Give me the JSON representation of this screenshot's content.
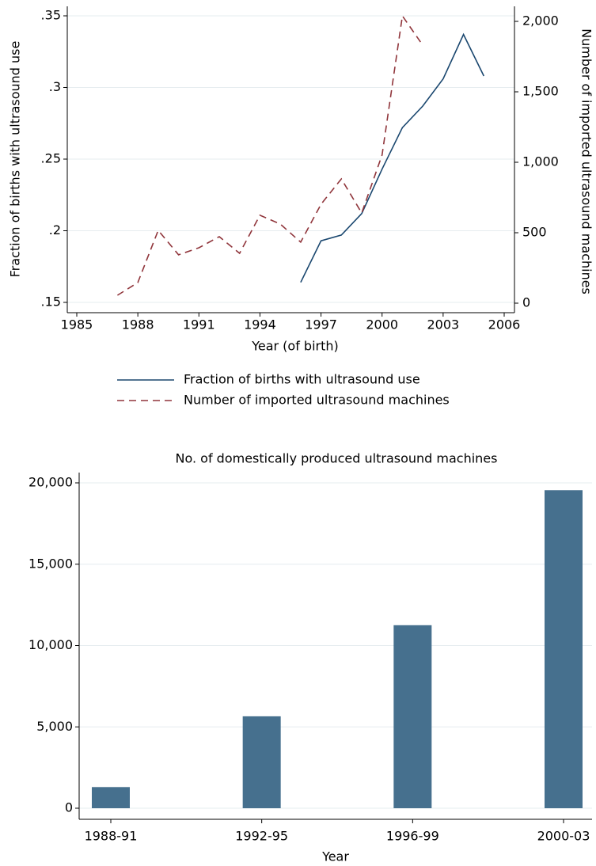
{
  "chart_data": [
    {
      "type": "line",
      "x_label": "Year (of birth)",
      "y_label": "Fraction of births with ultrasound use",
      "y2_label": "Number of imported ultrasound machines",
      "x": [
        1987,
        1988,
        1989,
        1990,
        1991,
        1992,
        1993,
        1994,
        1995,
        1996,
        1997,
        1998,
        1999,
        2000,
        2001,
        2002,
        2003,
        2004,
        2005
      ],
      "series": [
        {
          "name": "Fraction of births with ultrasound use",
          "color": "#1a476f",
          "style": "solid",
          "values": [
            null,
            null,
            null,
            null,
            null,
            null,
            null,
            null,
            null,
            0.164,
            0.193,
            0.197,
            0.212,
            0.243,
            0.272,
            0.287,
            0.306,
            0.337,
            0.308
          ]
        },
        {
          "name": "Number of imported ultrasound machines",
          "color": "#90353b",
          "style": "dashed",
          "axis": "y2",
          "values": [
            56,
            146,
            517,
            343,
            393,
            472,
            354,
            624,
            562,
            433,
            702,
            882,
            640,
            1051,
            2039,
            1831,
            null,
            null,
            null
          ]
        }
      ],
      "xlim": [
        1985,
        2006
      ],
      "xticks": [
        1985,
        1988,
        1991,
        1994,
        1997,
        2000,
        2003,
        2006
      ],
      "ylim": [
        0.15,
        0.35
      ],
      "yticks": [
        {
          "value": 0.15,
          "label": ".15"
        },
        {
          "value": 0.2,
          "label": ".2"
        },
        {
          "value": 0.25,
          "label": ".25"
        },
        {
          "value": 0.3,
          "label": ".3"
        },
        {
          "value": 0.35,
          "label": ".35"
        }
      ],
      "y2lim": [
        0,
        2000
      ],
      "y2ticks": [
        0,
        500,
        {
          "value": 1000,
          "label": "1,000"
        },
        {
          "value": 1500,
          "label": "1,500"
        },
        {
          "value": 2000,
          "label": "2,000"
        }
      ],
      "grid": true,
      "legend": "bottom"
    },
    {
      "type": "bar",
      "title": "No. of domestically produced ultrasound machines",
      "x_label": "Year",
      "categories": [
        "1988-91",
        "1992-95",
        "1996-99",
        "2000-03"
      ],
      "values": [
        1300,
        5650,
        11250,
        19550
      ],
      "color": "#46708e",
      "ylim": [
        0,
        20000
      ],
      "yticks": [
        0,
        {
          "value": 5000,
          "label": "5,000"
        },
        {
          "value": 10000,
          "label": "10,000"
        },
        {
          "value": 15000,
          "label": "15,000"
        },
        {
          "value": 20000,
          "label": "20,000"
        }
      ],
      "grid": true
    }
  ]
}
